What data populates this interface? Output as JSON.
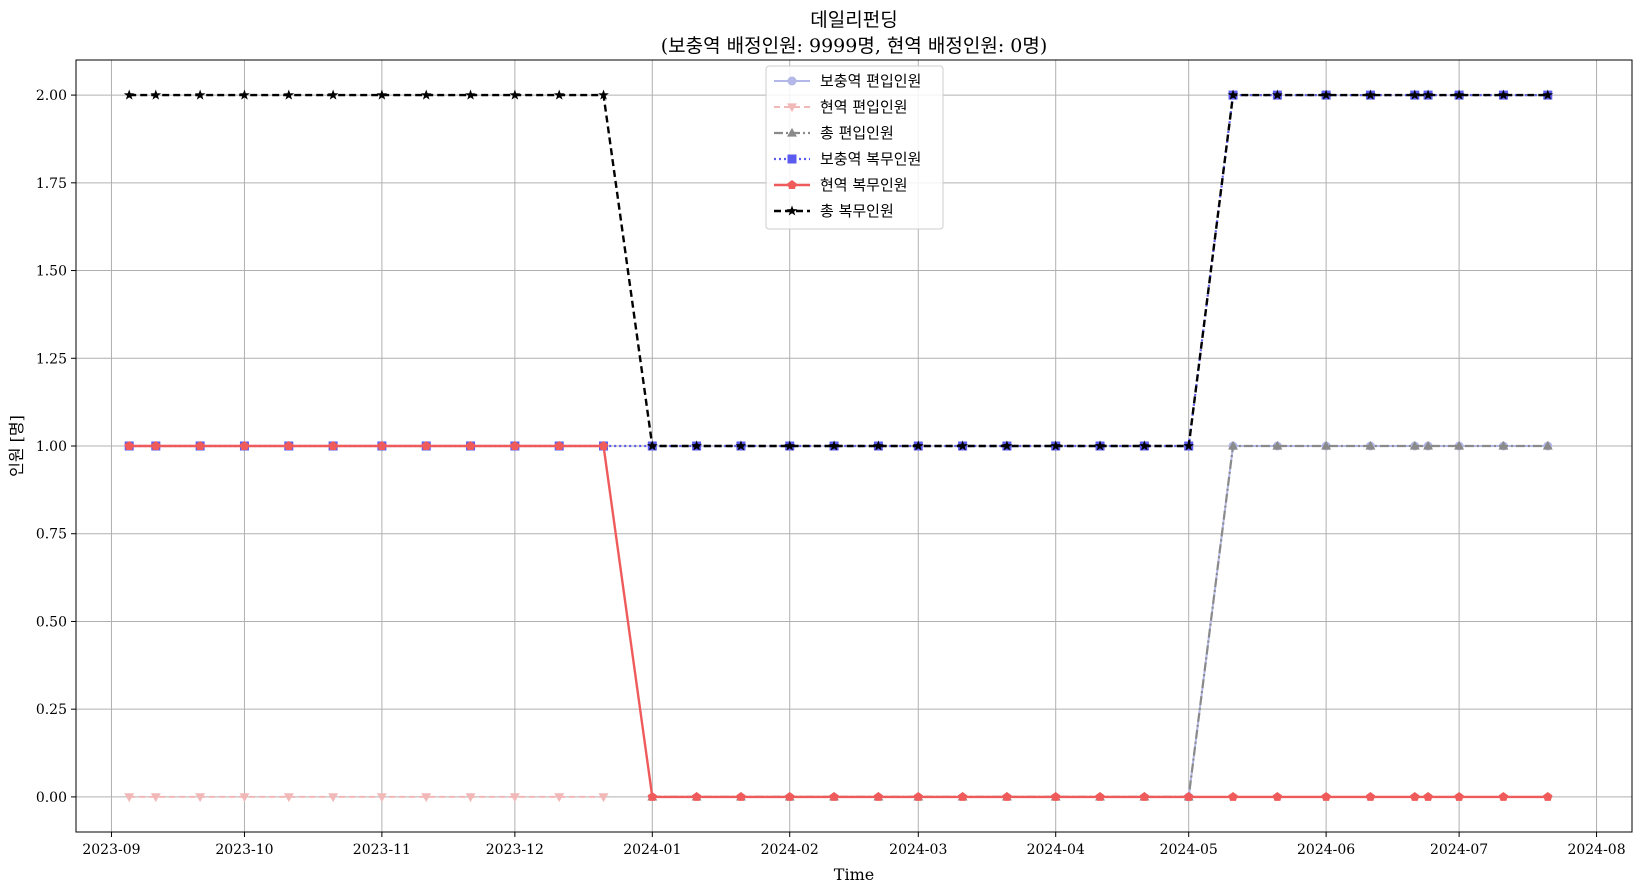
{
  "chart_data": {
    "type": "line",
    "title": "데일리펀딩",
    "subtitle": "(보충역 배정인원: 9999명, 현역 배정인원: 0명)",
    "xlabel": "Time",
    "ylabel": "인원 [명]",
    "ylim": [
      -0.1,
      2.1
    ],
    "xlim": [
      "2023-08-24",
      "2024-08-09"
    ],
    "grid": true,
    "legend_position": "upper center",
    "y_ticks": [
      "0.00",
      "0.25",
      "0.50",
      "0.75",
      "1.00",
      "1.25",
      "1.50",
      "1.75",
      "2.00"
    ],
    "x_ticks": [
      "2023-09",
      "2023-10",
      "2023-11",
      "2023-12",
      "2024-01",
      "2024-02",
      "2024-03",
      "2024-04",
      "2024-05",
      "2024-06",
      "2024-07",
      "2024-08"
    ],
    "x": [
      "2023-09-05",
      "2023-09-11",
      "2023-09-21",
      "2023-10-01",
      "2023-10-11",
      "2023-10-21",
      "2023-11-01",
      "2023-11-11",
      "2023-11-21",
      "2023-12-01",
      "2023-12-11",
      "2023-12-21",
      "2024-01-01",
      "2024-01-11",
      "2024-01-21",
      "2024-02-01",
      "2024-02-11",
      "2024-02-21",
      "2024-03-01",
      "2024-03-11",
      "2024-03-21",
      "2024-04-01",
      "2024-04-11",
      "2024-04-21",
      "2024-05-01",
      "2024-05-11",
      "2024-05-21",
      "2024-06-01",
      "2024-06-11",
      "2024-06-21",
      "2024-06-24",
      "2024-07-01",
      "2024-07-11",
      "2024-07-21"
    ],
    "series": [
      {
        "name": "보충역 편입인원",
        "color": "#b4b8e8",
        "dash": "",
        "marker": "circle",
        "width": 2,
        "values": [
          null,
          null,
          null,
          null,
          null,
          null,
          null,
          null,
          null,
          null,
          null,
          null,
          null,
          null,
          null,
          null,
          null,
          null,
          null,
          null,
          null,
          null,
          null,
          null,
          0,
          1,
          1,
          1,
          1,
          1,
          1,
          1,
          1,
          1
        ]
      },
      {
        "name": "현역 편입인원",
        "color": "#f2b8b8",
        "dash": "6,4",
        "marker": "triangle-down",
        "width": 2,
        "values": [
          0,
          0,
          0,
          0,
          0,
          0,
          0,
          0,
          0,
          0,
          0,
          0,
          null,
          null,
          null,
          null,
          null,
          null,
          null,
          null,
          null,
          null,
          null,
          null,
          null,
          null,
          null,
          null,
          null,
          null,
          null,
          null,
          null,
          null
        ]
      },
      {
        "name": "총 편입인원",
        "color": "#8a8a8a",
        "dash": "9,3,2,3",
        "marker": "triangle-up",
        "width": 2.2,
        "values": [
          null,
          null,
          null,
          null,
          null,
          null,
          null,
          null,
          null,
          null,
          null,
          null,
          0,
          0,
          0,
          0,
          0,
          0,
          0,
          0,
          0,
          0,
          0,
          0,
          0,
          1,
          1,
          1,
          1,
          1,
          1,
          1,
          1,
          1
        ]
      },
      {
        "name": "보충역 복무인원",
        "color": "#5b5bef",
        "dash": "2,3",
        "marker": "square",
        "width": 2.2,
        "values": [
          1,
          1,
          1,
          1,
          1,
          1,
          1,
          1,
          1,
          1,
          1,
          1,
          1,
          1,
          1,
          1,
          1,
          1,
          1,
          1,
          1,
          1,
          1,
          1,
          1,
          2,
          2,
          2,
          2,
          2,
          2,
          2,
          2,
          2
        ]
      },
      {
        "name": "현역 복무인원",
        "color": "#ef5b5b",
        "dash": "",
        "marker": "pentagon",
        "width": 2.4,
        "values": [
          1,
          1,
          1,
          1,
          1,
          1,
          1,
          1,
          1,
          1,
          1,
          1,
          0,
          0,
          0,
          0,
          0,
          0,
          0,
          0,
          0,
          0,
          0,
          0,
          0,
          0,
          0,
          0,
          0,
          0,
          0,
          0,
          0,
          0
        ]
      },
      {
        "name": "총 복무인원",
        "color": "#000000",
        "dash": "7,4",
        "marker": "star",
        "width": 2.4,
        "values": [
          2,
          2,
          2,
          2,
          2,
          2,
          2,
          2,
          2,
          2,
          2,
          2,
          1,
          1,
          1,
          1,
          1,
          1,
          1,
          1,
          1,
          1,
          1,
          1,
          1,
          2,
          2,
          2,
          2,
          2,
          2,
          2,
          2,
          2
        ]
      }
    ]
  }
}
